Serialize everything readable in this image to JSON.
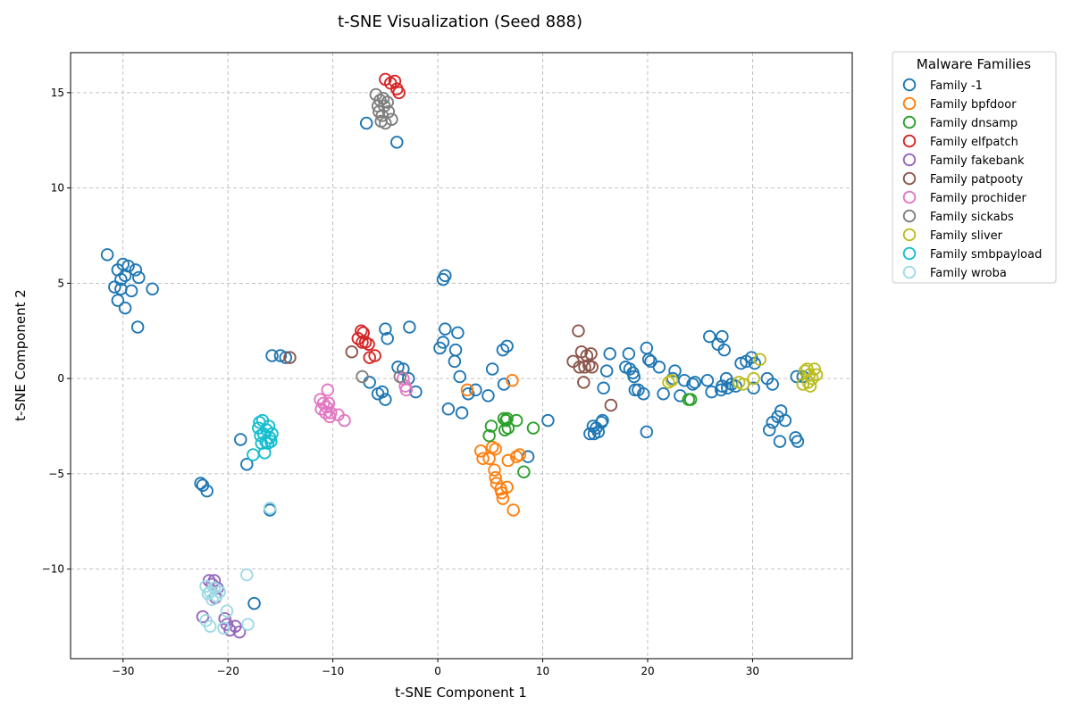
{
  "chart_data": {
    "type": "scatter",
    "title": "t-SNE Visualization (Seed 888)",
    "xlabel": "t-SNE Component 1",
    "ylabel": "t-SNE Component 2",
    "xlim": [
      -35,
      39.5
    ],
    "ylim": [
      -14.7,
      17.1
    ],
    "x_ticks": [
      -30,
      -20,
      -10,
      0,
      10,
      20,
      30
    ],
    "y_ticks": [
      -10,
      -5,
      0,
      5,
      10,
      15
    ],
    "x_tick_labels": [
      "−30",
      "−20",
      "−10",
      "0",
      "10",
      "20",
      "30"
    ],
    "y_tick_labels": [
      "−10",
      "−5",
      "0",
      "5",
      "10",
      "15"
    ],
    "grid": true,
    "marker": "hollow-circle",
    "legend": {
      "title": "Malware Families",
      "position": "outside-top-right"
    },
    "series": [
      {
        "name": "Family -1",
        "color": "#1f77b4",
        "points": [
          [
            -31.5,
            6.5
          ],
          [
            -30.5,
            5.7
          ],
          [
            -30,
            6.0
          ],
          [
            -29.5,
            5.9
          ],
          [
            -28.8,
            5.7
          ],
          [
            -29.8,
            5.4
          ],
          [
            -30.2,
            5.2
          ],
          [
            -28.5,
            5.3
          ],
          [
            -30.8,
            4.8
          ],
          [
            -30.2,
            4.7
          ],
          [
            -29.2,
            4.6
          ],
          [
            -27.2,
            4.7
          ],
          [
            -30.5,
            4.1
          ],
          [
            -29.8,
            3.7
          ],
          [
            -28.6,
            2.7
          ],
          [
            -22.6,
            -5.5
          ],
          [
            -22.4,
            -5.6
          ],
          [
            -22,
            -5.9
          ],
          [
            -18.8,
            -3.2
          ],
          [
            -18.2,
            -4.5
          ],
          [
            -16,
            -6.9
          ],
          [
            -17.5,
            -11.8
          ],
          [
            -15.8,
            1.2
          ],
          [
            -15,
            1.2
          ],
          [
            -14.5,
            1.1
          ],
          [
            -6.8,
            13.4
          ],
          [
            -3.9,
            12.4
          ],
          [
            -6.5,
            -0.2
          ],
          [
            -5.7,
            -0.8
          ],
          [
            -5.3,
            -0.7
          ],
          [
            -5,
            -1.1
          ],
          [
            -3.8,
            0.6
          ],
          [
            -3.3,
            0.5
          ],
          [
            -2.8,
            0
          ],
          [
            -2.1,
            -0.7
          ],
          [
            -5,
            2.6
          ],
          [
            -4.8,
            2.1
          ],
          [
            -2.7,
            2.7
          ],
          [
            0.5,
            5.2
          ],
          [
            0.7,
            5.4
          ],
          [
            0.2,
            1.6
          ],
          [
            0.5,
            1.9
          ],
          [
            0.7,
            2.6
          ],
          [
            1.9,
            2.4
          ],
          [
            1.7,
            1.5
          ],
          [
            1.6,
            0.9
          ],
          [
            2.1,
            0.1
          ],
          [
            1,
            -1.6
          ],
          [
            2.3,
            -1.8
          ],
          [
            2.9,
            -0.8
          ],
          [
            3.6,
            -0.6
          ],
          [
            4.8,
            -0.9
          ],
          [
            5.2,
            0.5
          ],
          [
            6.2,
            1.5
          ],
          [
            6.6,
            1.7
          ],
          [
            6.3,
            -0.3
          ],
          [
            8.6,
            -4.1
          ],
          [
            10.5,
            -2.2
          ],
          [
            14.5,
            -2.9
          ],
          [
            14.8,
            -2.5
          ],
          [
            15.3,
            -2.8
          ],
          [
            15.1,
            -2.6
          ],
          [
            14.9,
            -2.9
          ],
          [
            15.6,
            -2.3
          ],
          [
            15.7,
            -2.2
          ],
          [
            15.8,
            -0.5
          ],
          [
            16.1,
            0.4
          ],
          [
            16.4,
            1.3
          ],
          [
            17.9,
            0.6
          ],
          [
            18.2,
            1.3
          ],
          [
            18.3,
            0.5
          ],
          [
            18.6,
            0.3
          ],
          [
            18.7,
            0.1
          ],
          [
            18.8,
            -0.6
          ],
          [
            19.1,
            -0.6
          ],
          [
            19.6,
            -0.8
          ],
          [
            19.9,
            1.6
          ],
          [
            20.1,
            1.0
          ],
          [
            20.3,
            0.9
          ],
          [
            19.9,
            -2.8
          ],
          [
            21.1,
            0.6
          ],
          [
            21.5,
            -0.8
          ],
          [
            22.4,
            0
          ],
          [
            22.6,
            0.4
          ],
          [
            23.1,
            -0.9
          ],
          [
            23.5,
            -0.1
          ],
          [
            24.3,
            -0.3
          ],
          [
            24.5,
            -0.2
          ],
          [
            25.7,
            -0.1
          ],
          [
            25.9,
            2.2
          ],
          [
            26.1,
            -0.7
          ],
          [
            26.7,
            1.8
          ],
          [
            27.1,
            2.2
          ],
          [
            27.1,
            -0.4
          ],
          [
            27,
            -0.6
          ],
          [
            27.3,
            1.5
          ],
          [
            27.5,
            0
          ],
          [
            27.6,
            -0.5
          ],
          [
            28,
            -0.3
          ],
          [
            28.4,
            -0.4
          ],
          [
            28.9,
            0.8
          ],
          [
            29.4,
            0.9
          ],
          [
            29.9,
            1.1
          ],
          [
            30.1,
            -0.5
          ],
          [
            30.2,
            0.8
          ],
          [
            31.4,
            0
          ],
          [
            31.9,
            -0.3
          ],
          [
            31.6,
            -2.7
          ],
          [
            31.9,
            -2.3
          ],
          [
            32.4,
            -2.0
          ],
          [
            32.6,
            -3.3
          ],
          [
            32.7,
            -1.7
          ],
          [
            33.1,
            -2.2
          ],
          [
            34.1,
            -3.1
          ],
          [
            34.3,
            -3.3
          ],
          [
            34.2,
            0.1
          ],
          [
            34.8,
            0.1
          ]
        ]
      },
      {
        "name": "Family bpfdoor",
        "color": "#ff7f0e",
        "points": [
          [
            2.8,
            -0.6
          ],
          [
            7.1,
            -0.1
          ],
          [
            4.1,
            -3.8
          ],
          [
            4.3,
            -4.2
          ],
          [
            4.9,
            -4.2
          ],
          [
            5.2,
            -3.6
          ],
          [
            5.5,
            -3.7
          ],
          [
            5.4,
            -4.8
          ],
          [
            5.5,
            -5.2
          ],
          [
            5.6,
            -5.5
          ],
          [
            6,
            -5.8
          ],
          [
            6.1,
            -6.0
          ],
          [
            6.2,
            -6.3
          ],
          [
            6.6,
            -5.7
          ],
          [
            6.7,
            -4.3
          ],
          [
            7.2,
            -6.9
          ],
          [
            7.5,
            -4.1
          ],
          [
            7.8,
            -4.0
          ]
        ]
      },
      {
        "name": "Family dnsamp",
        "color": "#2ca02c",
        "points": [
          [
            4.9,
            -3.0
          ],
          [
            5.1,
            -2.5
          ],
          [
            6.3,
            -2.1
          ],
          [
            6.5,
            -2.2
          ],
          [
            6.6,
            -2.1
          ],
          [
            6.7,
            -2.6
          ],
          [
            6.4,
            -2.7
          ],
          [
            7.5,
            -2.2
          ],
          [
            9.1,
            -2.6
          ],
          [
            8.2,
            -4.9
          ],
          [
            23.9,
            -1.1
          ],
          [
            24.1,
            -1.1
          ]
        ]
      },
      {
        "name": "Family elfpatch",
        "color": "#d62728",
        "points": [
          [
            -5,
            15.7
          ],
          [
            -4.5,
            15.5
          ],
          [
            -4.1,
            15.6
          ],
          [
            -3.9,
            15.2
          ],
          [
            -3.7,
            15.0
          ],
          [
            -7.6,
            2.1
          ],
          [
            -7.3,
            2.5
          ],
          [
            -7.1,
            2.4
          ],
          [
            -7.2,
            1.9
          ],
          [
            -6.9,
            1.9
          ],
          [
            -6.6,
            1.8
          ],
          [
            -6.5,
            1.1
          ],
          [
            -6,
            1.2
          ]
        ]
      },
      {
        "name": "Family fakebank",
        "color": "#9467bd",
        "points": [
          [
            -22.4,
            -12.5
          ],
          [
            -21.8,
            -10.6
          ],
          [
            -21.5,
            -10.8
          ],
          [
            -21.3,
            -10.6
          ],
          [
            -21.2,
            -11.5
          ],
          [
            -21,
            -11.0
          ],
          [
            -20.3,
            -12.6
          ],
          [
            -20.1,
            -12.9
          ],
          [
            -19.8,
            -13.2
          ],
          [
            -19.3,
            -13.0
          ],
          [
            -18.9,
            -13.3
          ]
        ]
      },
      {
        "name": "Family patpooty",
        "color": "#8c564b",
        "points": [
          [
            -14.1,
            1.1
          ],
          [
            -8.2,
            1.4
          ],
          [
            12.9,
            0.9
          ],
          [
            13.4,
            2.5
          ],
          [
            13.7,
            1.4
          ],
          [
            13.5,
            0.6
          ],
          [
            13.9,
            -0.2
          ],
          [
            14,
            0.6
          ],
          [
            14.2,
            1.2
          ],
          [
            14.4,
            0.7
          ],
          [
            14.6,
            1.3
          ],
          [
            14.7,
            0.6
          ],
          [
            16.5,
            -1.4
          ]
        ]
      },
      {
        "name": "Family prochider",
        "color": "#e377c2",
        "points": [
          [
            -11.2,
            -1.1
          ],
          [
            -11.1,
            -1.6
          ],
          [
            -10.9,
            -1.3
          ],
          [
            -10.7,
            -1.8
          ],
          [
            -10.6,
            -1.5
          ],
          [
            -10.5,
            -0.6
          ],
          [
            -10.4,
            -1.3
          ],
          [
            -10.3,
            -2.0
          ],
          [
            -10.2,
            -1.8
          ],
          [
            -9.5,
            -1.9
          ],
          [
            -8.9,
            -2.2
          ],
          [
            -3.3,
            0
          ],
          [
            -3.1,
            -0.4
          ],
          [
            -3,
            -0.6
          ]
        ]
      },
      {
        "name": "Family sickabs",
        "color": "#7f7f7f",
        "points": [
          [
            -5.9,
            14.9
          ],
          [
            -5.5,
            14.6
          ],
          [
            -5.7,
            14.3
          ],
          [
            -5.2,
            14.7
          ],
          [
            -5.1,
            14.3
          ],
          [
            -4.8,
            14.5
          ],
          [
            -5.6,
            14.0
          ],
          [
            -5.3,
            13.8
          ],
          [
            -4.7,
            14.0
          ],
          [
            -4.4,
            13.6
          ],
          [
            -5.4,
            13.5
          ],
          [
            -5,
            13.4
          ],
          [
            -3.6,
            0.1
          ],
          [
            -7.2,
            0.1
          ]
        ]
      },
      {
        "name": "Family sliver",
        "color": "#bcbd22",
        "points": [
          [
            22,
            -0.2
          ],
          [
            22.3,
            -0.1
          ],
          [
            28.7,
            -0.2
          ],
          [
            29.1,
            -0.3
          ],
          [
            30.1,
            0
          ],
          [
            30.7,
            1.0
          ],
          [
            34.8,
            -0.3
          ],
          [
            35,
            0.4
          ],
          [
            35.2,
            0.5
          ],
          [
            35.4,
            0.2
          ],
          [
            35.5,
            -0.4
          ],
          [
            35.7,
            0
          ],
          [
            35.9,
            0.5
          ],
          [
            36.1,
            0.2
          ],
          [
            35.3,
            -0.2
          ]
        ]
      },
      {
        "name": "Family smbpayload",
        "color": "#17becf",
        "points": [
          [
            -17.6,
            -4.0
          ],
          [
            -17.1,
            -2.6
          ],
          [
            -17,
            -2.3
          ],
          [
            -16.9,
            -3.0
          ],
          [
            -16.8,
            -3.4
          ],
          [
            -16.7,
            -2.2
          ],
          [
            -16.6,
            -2.9
          ],
          [
            -16.5,
            -3.9
          ],
          [
            -16.4,
            -3.3
          ],
          [
            -16.3,
            -2.7
          ],
          [
            -16.2,
            -3.4
          ],
          [
            -16.1,
            -2.5
          ],
          [
            -16,
            -3.1
          ],
          [
            -15.9,
            -3.3
          ],
          [
            -15.8,
            -2.9
          ]
        ]
      },
      {
        "name": "Family wroba",
        "color": "#9edae5",
        "points": [
          [
            -22.1,
            -10.9
          ],
          [
            -21.9,
            -11.3
          ],
          [
            -21.7,
            -11.2
          ],
          [
            -21.5,
            -11.6
          ],
          [
            -21.3,
            -11.0
          ],
          [
            -21.1,
            -11.4
          ],
          [
            -20.8,
            -11.2
          ],
          [
            -22.1,
            -12.7
          ],
          [
            -21.7,
            -13.0
          ],
          [
            -20.4,
            -13.1
          ],
          [
            -20.1,
            -12.2
          ],
          [
            -18.2,
            -10.3
          ],
          [
            -18.1,
            -12.9
          ],
          [
            -16,
            -6.8
          ]
        ]
      }
    ]
  }
}
